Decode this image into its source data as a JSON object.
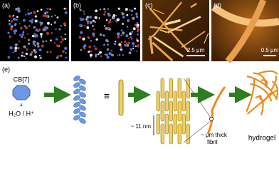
{
  "panels": [
    {
      "label": "(a)"
    },
    {
      "label": "(b)"
    },
    {
      "label": "(c)",
      "scale_bar": "2.5 μm"
    },
    {
      "label": "(d)",
      "scale_bar": "0.5 μm"
    }
  ],
  "scheme": {
    "label": "(e)",
    "reagent": "CB[7]",
    "plus": "+",
    "solvent": "H₂O / H⁺",
    "equiv": "≡",
    "rod_length": "~ 11 nm",
    "fibril": [
      "~ μm thick",
      "fibril"
    ],
    "product": "hydrogel"
  }
}
